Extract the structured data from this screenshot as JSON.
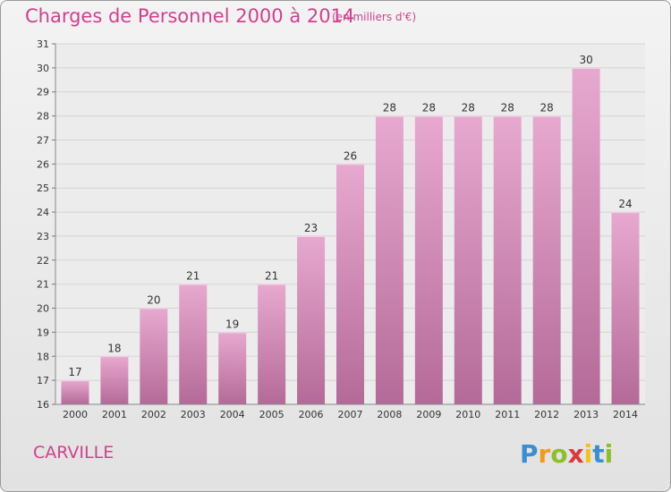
{
  "title": "Charges de Personnel 2000 à 2014",
  "unit_note": "(en milliers d'€)",
  "commune": "CARVILLE",
  "logo_text": "Proxiti",
  "colors": {
    "title": "#d2408e",
    "bar_top": "#e7a9cf",
    "bar_bottom": "#b46a98",
    "grid": "#d4d4d4",
    "axis_text": "#333333"
  },
  "chart_data": {
    "type": "bar",
    "categories": [
      "2000",
      "2001",
      "2002",
      "2003",
      "2004",
      "2005",
      "2006",
      "2007",
      "2008",
      "2009",
      "2010",
      "2011",
      "2012",
      "2013",
      "2014"
    ],
    "values": [
      17,
      18,
      20,
      21,
      19,
      21,
      23,
      26,
      28,
      28,
      28,
      28,
      28,
      30,
      24
    ],
    "ylim": [
      16,
      31
    ],
    "yticks": [
      16,
      17,
      18,
      19,
      20,
      21,
      22,
      23,
      24,
      25,
      26,
      27,
      28,
      29,
      30,
      31
    ],
    "grid": true,
    "data_labels": true
  }
}
